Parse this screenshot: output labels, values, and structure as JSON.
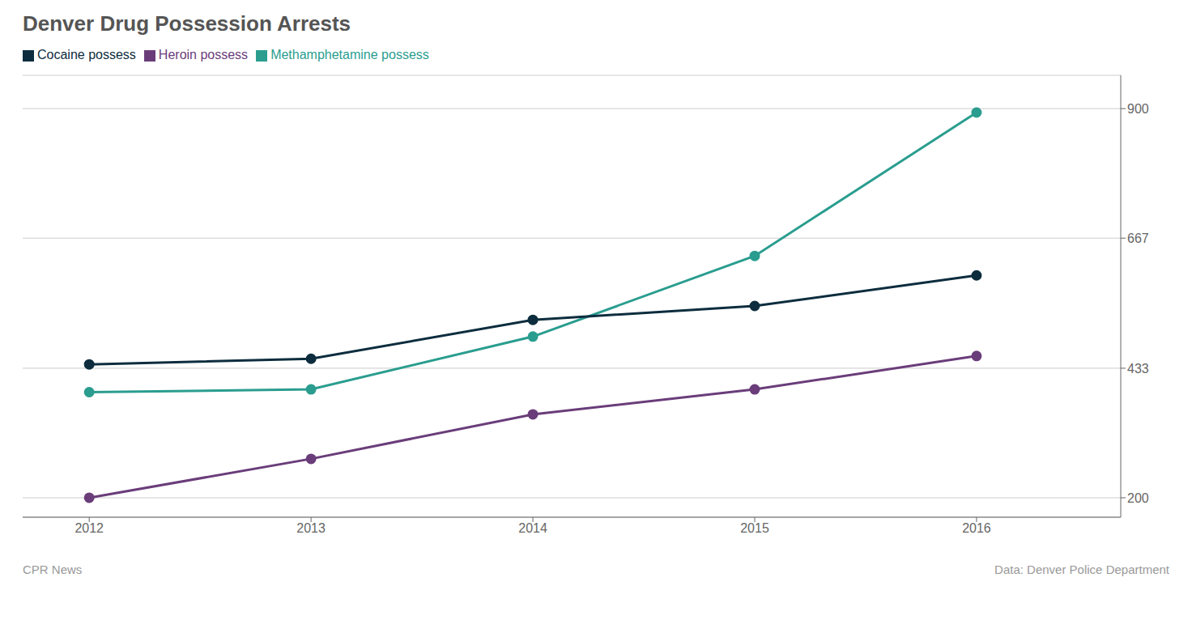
{
  "chart_data": {
    "type": "line",
    "title": "Denver Drug Possession Arrests",
    "x": [
      2012,
      2013,
      2014,
      2015,
      2016
    ],
    "series": [
      {
        "name": "Methamphetamine possess",
        "color": "#2a9d8f",
        "values": [
          390,
          395,
          490,
          635,
          893
        ]
      },
      {
        "name": "Cocaine possess",
        "color": "#0d2d3e",
        "values": [
          440,
          450,
          520,
          545,
          600
        ]
      },
      {
        "name": "Heroin possess",
        "color": "#6a3d7a",
        "values": [
          200,
          270,
          350,
          395,
          455
        ]
      }
    ],
    "xlim": [
      2011.7,
      2016.65
    ],
    "xticks": [
      2012,
      2013,
      2014,
      2015,
      2016
    ],
    "ylim": [
      165,
      960
    ],
    "yticks": [
      200,
      433,
      667,
      900
    ],
    "grid": "y",
    "legend": "upper left",
    "marker": "circle",
    "annotations": [
      "CPR News",
      "Data: Denver Police Department"
    ]
  }
}
